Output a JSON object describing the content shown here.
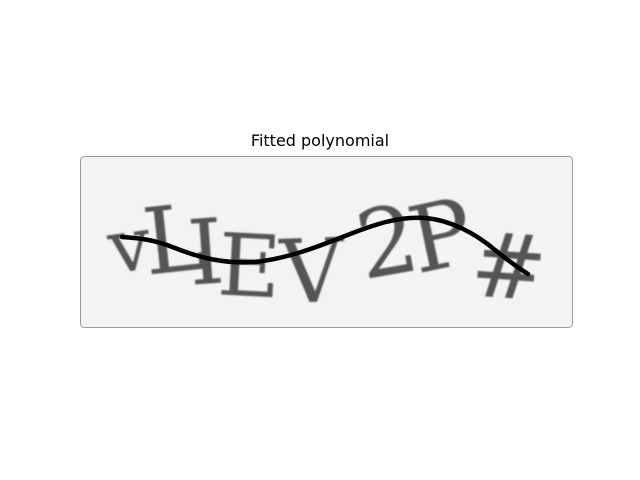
{
  "figure": {
    "title": "Fitted polynomial"
  },
  "captcha": {
    "text": "vLIEV2P#",
    "glyph_color": "#555555",
    "background_color": "#f3f3f3",
    "border_color": "#9a9a9a"
  },
  "curve": {
    "color": "#000000",
    "label": "fitted polynomial curve"
  }
}
